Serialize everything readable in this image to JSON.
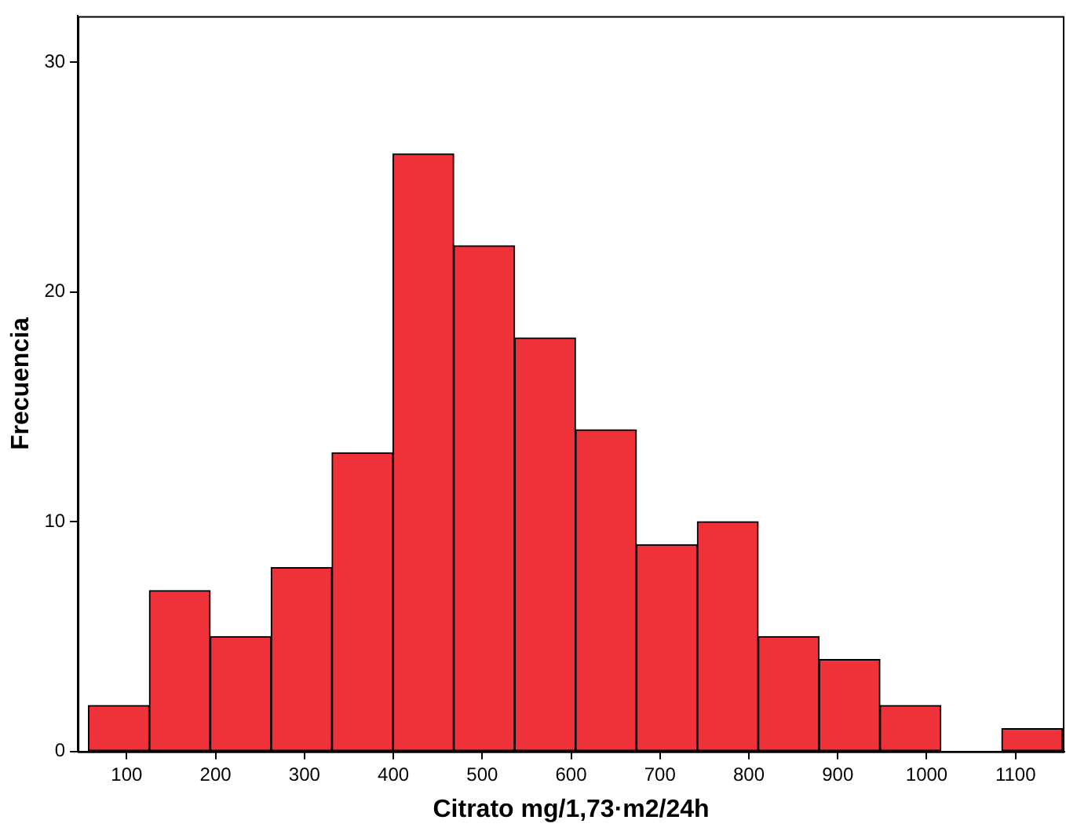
{
  "chart_data": {
    "type": "histogram",
    "xlabel": "Citrato mg/1,73·m2/24h",
    "ylabel": "Frecuencia",
    "bins": [
      57,
      125.5,
      194,
      262.5,
      331,
      399.5,
      468,
      536.5,
      605,
      673.5,
      742,
      810.5,
      879,
      947.5,
      1016,
      1084.5,
      1153
    ],
    "values": [
      2,
      7,
      5,
      8,
      13,
      26,
      22,
      18,
      14,
      9,
      10,
      5,
      4,
      2,
      0,
      1
    ],
    "color": "#ef323a",
    "xlim": [
      45,
      1155
    ],
    "xticks": [
      100,
      200,
      300,
      400,
      500,
      600,
      700,
      800,
      900,
      1000,
      1100
    ],
    "ylim": [
      0,
      32
    ],
    "yticks": [
      0,
      10,
      20,
      30
    ],
    "grid": false,
    "legend": false
  }
}
